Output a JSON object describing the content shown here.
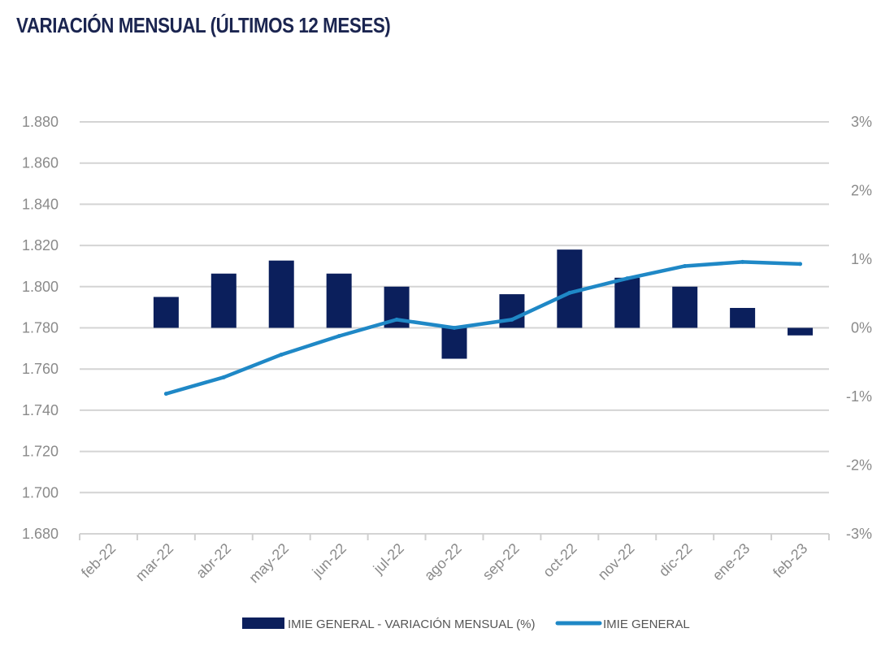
{
  "chart_data": {
    "type": "bar+line",
    "title": "VARIACIÓN MENSUAL (ÚLTIMOS 12 MESES)",
    "categories": [
      "feb-22",
      "mar-22",
      "abr-22",
      "may-22",
      "jun-22",
      "jul-22",
      "ago-22",
      "sep-22",
      "oct-22",
      "nov-22",
      "dic-22",
      "ene-23",
      "feb-23"
    ],
    "y_left": {
      "ylim": [
        1680,
        1880
      ],
      "ticks": [
        1880,
        1860,
        1840,
        1820,
        1800,
        1780,
        1760,
        1740,
        1720,
        1700,
        1680
      ],
      "tick_labels": [
        "1.880",
        "1.860",
        "1.840",
        "1.820",
        "1.800",
        "1.780",
        "1.760",
        "1.740",
        "1.720",
        "1.700",
        "1.680"
      ]
    },
    "y_right": {
      "ylim": [
        -3,
        3
      ],
      "ticks": [
        3,
        2,
        1,
        0,
        -1,
        -2,
        -3
      ],
      "tick_labels": [
        "3%",
        "2%",
        "1%",
        "0%",
        "-1%",
        "-2%",
        "-3%"
      ]
    },
    "grid": true,
    "legend_position": "bottom",
    "series": [
      {
        "name": "IMIE GENERAL - VARIACIÓN MENSUAL (%)",
        "type": "bar",
        "axis": "right",
        "color": "#0b1f5c",
        "values": [
          null,
          0.45,
          0.79,
          0.98,
          0.79,
          0.6,
          -0.45,
          0.49,
          1.14,
          0.73,
          0.6,
          0.29,
          -0.11
        ]
      },
      {
        "name": "IMIE GENERAL",
        "type": "line",
        "axis": "left",
        "color": "#1f88c6",
        "values": [
          null,
          1748,
          1756,
          1767,
          1776,
          1784,
          1780,
          1784,
          1797,
          1804,
          1810,
          1812,
          1811
        ]
      }
    ]
  }
}
